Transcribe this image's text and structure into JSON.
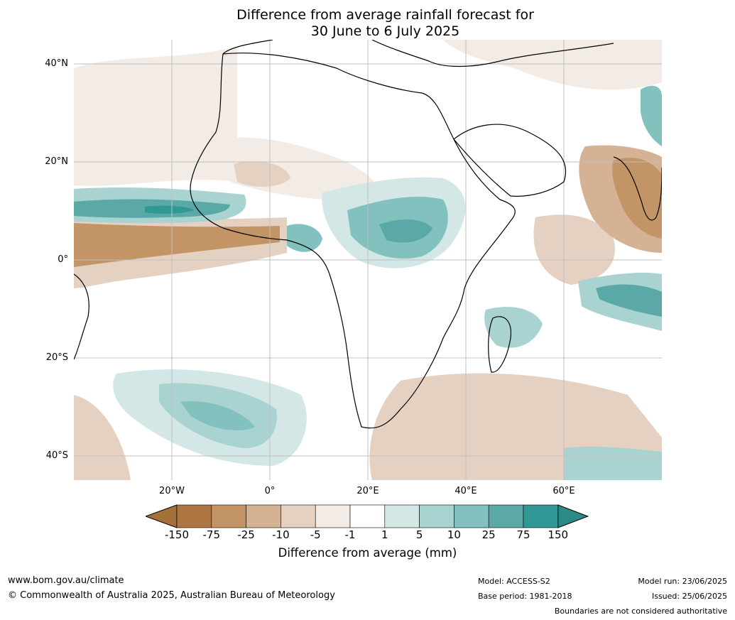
{
  "title": {
    "line1": "Difference from average rainfall forecast for",
    "line2": "30 June to 6 July 2025"
  },
  "map": {
    "lat_labels": [
      "40°N",
      "20°N",
      "0°",
      "20°S",
      "40°S"
    ],
    "lon_labels": [
      "20°W",
      "0°",
      "20°E",
      "40°E",
      "60°E"
    ]
  },
  "colorbar": {
    "labels": [
      "-150",
      "-75",
      "-25",
      "-10",
      "-5",
      "-1",
      "1",
      "5",
      "10",
      "25",
      "75",
      "150"
    ],
    "colors": [
      "#a5713a",
      "#ae7641",
      "#c39566",
      "#d5b293",
      "#e5d1c1",
      "#f3ece6",
      "#ffffff",
      "#d3e8e6",
      "#a8d3d0",
      "#82c1be",
      "#5ba9a7",
      "#319995",
      "#2a8a86"
    ],
    "title": "Difference from average (mm)"
  },
  "footer": {
    "url": "www.bom.gov.au/climate",
    "copyright": "© Commonwealth of Australia 2025, Australian Bureau of Meteorology",
    "model": "Model: ACCESS-S2",
    "base_period": "Base period: 1981-2018",
    "model_run": "Model run: 23/06/2025",
    "issued": "Issued: 25/06/2025",
    "boundaries": "Boundaries are not considered authoritative"
  }
}
